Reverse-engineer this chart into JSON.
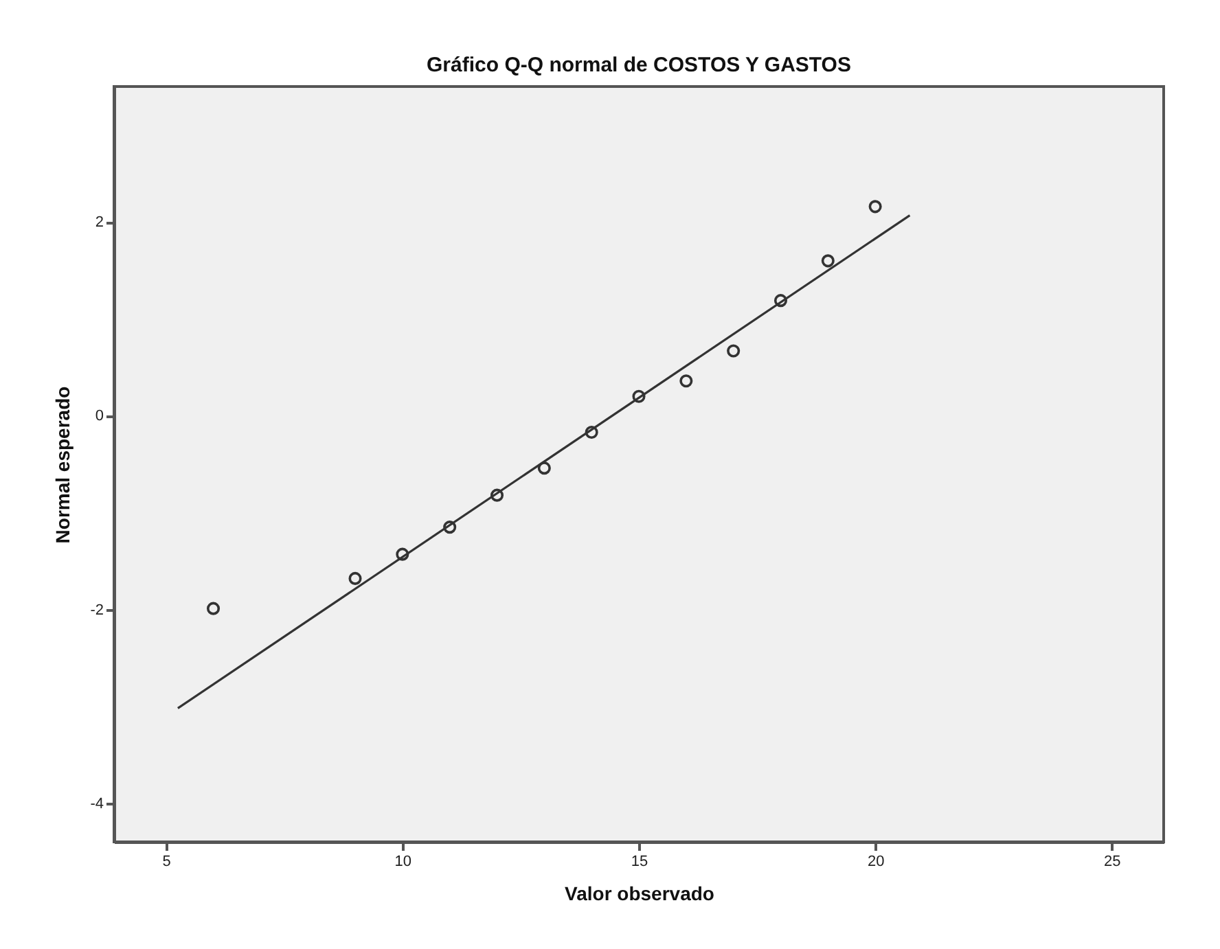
{
  "chart_data": {
    "type": "scatter",
    "title": "Gráfico Q-Q normal de COSTOS Y GASTOS",
    "xlabel": "Valor observado",
    "ylabel": "Normal esperado",
    "xlim": [
      3.9,
      26.1
    ],
    "ylim": [
      -4.4,
      3.4
    ],
    "xticks": [
      5,
      10,
      15,
      20,
      25
    ],
    "yticks": [
      -4,
      -2,
      0,
      2
    ],
    "series": [
      {
        "marker": "circle",
        "color": "#333333",
        "x": [
          6,
          9,
          10,
          11,
          12,
          13,
          14,
          15,
          16,
          17,
          18,
          19,
          20
        ],
        "values": [
          -1.99,
          -1.68,
          -1.43,
          -1.15,
          -0.82,
          -0.54,
          -0.17,
          0.2,
          0.36,
          0.67,
          1.19,
          1.6,
          2.16
        ]
      },
      {
        "type": "line",
        "color": "#333333",
        "x": [
          5.25,
          20.73
        ],
        "values": [
          -3.02,
          2.07
        ]
      }
    ]
  }
}
